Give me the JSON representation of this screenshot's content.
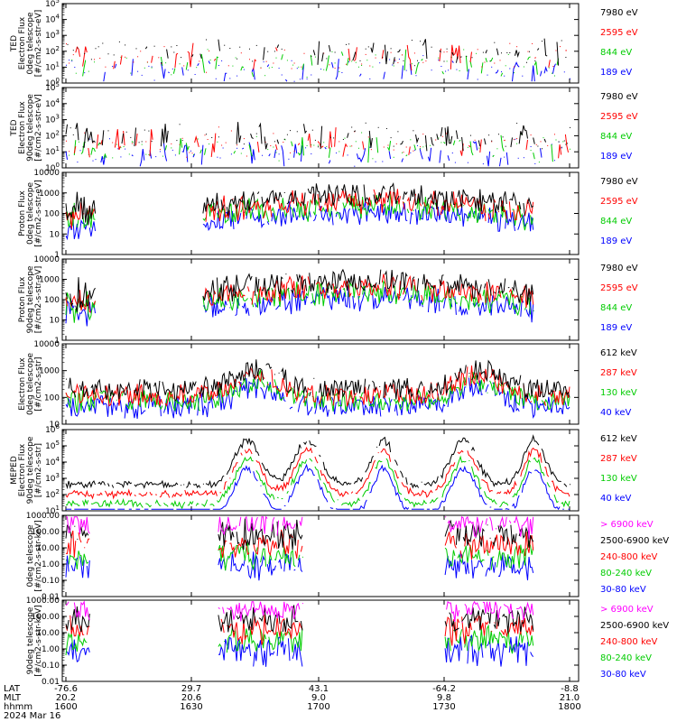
{
  "chart_data": [
    {
      "type": "line",
      "ylabel": [
        "TED",
        "Electron Flux",
        "0deg telescope",
        "[#/cm2-s-str-eV]"
      ],
      "yscale": "log",
      "ytick_labels": [
        "10^0",
        "10^1",
        "10^2",
        "10^3",
        "10^4",
        "10^5"
      ],
      "ylim": [
        1,
        100000
      ],
      "series": [
        {
          "name": "7980 eV",
          "color": "#000000"
        },
        {
          "name": "2595 eV",
          "color": "#ff0000"
        },
        {
          "name": "844 eV",
          "color": "#00cc00"
        },
        {
          "name": "189 eV",
          "color": "#0000ff"
        }
      ]
    },
    {
      "type": "line",
      "ylabel": [
        "TED",
        "Electron Flux",
        "90deg telescope",
        "[#/cm2-s-str-eV]"
      ],
      "yscale": "log",
      "ytick_labels": [
        "10^0",
        "10^1",
        "10^2",
        "10^3",
        "10^4",
        "10^5"
      ],
      "ylim": [
        1,
        100000
      ],
      "series": [
        {
          "name": "7980 eV",
          "color": "#000000"
        },
        {
          "name": "2595 eV",
          "color": "#ff0000"
        },
        {
          "name": "844 eV",
          "color": "#00cc00"
        },
        {
          "name": "189 eV",
          "color": "#0000ff"
        }
      ]
    },
    {
      "type": "line",
      "ylabel": [
        "Proton Flux",
        "0deg telescope",
        "[#/cm2-s-str-eV]"
      ],
      "yscale": "log",
      "ytick_labels": [
        "1",
        "10",
        "100",
        "1000",
        "10000"
      ],
      "ylim": [
        1,
        10000
      ],
      "series": [
        {
          "name": "7980 eV",
          "color": "#000000"
        },
        {
          "name": "2595 eV",
          "color": "#ff0000"
        },
        {
          "name": "844 eV",
          "color": "#00cc00"
        },
        {
          "name": "189 eV",
          "color": "#0000ff"
        }
      ]
    },
    {
      "type": "line",
      "ylabel": [
        "Proton Flux",
        "90deg telescope",
        "[#/cm2-s-str-eV]"
      ],
      "yscale": "log",
      "ytick_labels": [
        "1",
        "10",
        "100",
        "1000",
        "10000"
      ],
      "ylim": [
        1,
        10000
      ],
      "series": [
        {
          "name": "7980 eV",
          "color": "#000000"
        },
        {
          "name": "2595 eV",
          "color": "#ff0000"
        },
        {
          "name": "844 eV",
          "color": "#00cc00"
        },
        {
          "name": "189 eV",
          "color": "#0000ff"
        }
      ]
    },
    {
      "type": "line",
      "ylabel": [
        "Electron Flux",
        "0deg telescope",
        "[#/cm2-s-str]"
      ],
      "yscale": "log",
      "ytick_labels": [
        "10",
        "100",
        "1000",
        "10000"
      ],
      "ylim": [
        10,
        10000
      ],
      "series": [
        {
          "name": "612 keV",
          "color": "#000000"
        },
        {
          "name": "287 keV",
          "color": "#ff0000"
        },
        {
          "name": "130 keV",
          "color": "#00cc00"
        },
        {
          "name": "40 keV",
          "color": "#0000ff"
        }
      ]
    },
    {
      "type": "line",
      "ylabel": [
        "MEPED",
        "Electron Flux",
        "90deg telescope",
        "[#/cm2-s-str]"
      ],
      "yscale": "log",
      "ytick_labels": [
        "10^1",
        "10^2",
        "10^3",
        "10^4",
        "10^5",
        "10^6"
      ],
      "ylim": [
        10,
        1000000
      ],
      "series": [
        {
          "name": "612 keV",
          "color": "#000000"
        },
        {
          "name": "287 keV",
          "color": "#ff0000"
        },
        {
          "name": "130 keV",
          "color": "#00cc00"
        },
        {
          "name": "40 keV",
          "color": "#0000ff"
        }
      ]
    },
    {
      "type": "line",
      "ylabel": [
        "0deg telescope",
        "[#/cm2-s-str-keV]"
      ],
      "yscale": "log",
      "ytick_labels": [
        "0.01",
        "0.10",
        "1.00",
        "10.00",
        "100.00",
        "1000.00"
      ],
      "ylim": [
        0.01,
        1000
      ],
      "series": [
        {
          "name": "> 6900 keV",
          "color": "#ff00ff"
        },
        {
          "name": "2500-6900 keV",
          "color": "#000000"
        },
        {
          "name": "240-800 keV",
          "color": "#ff0000"
        },
        {
          "name": "80-240 keV",
          "color": "#00cc00"
        },
        {
          "name": "30-80 keV",
          "color": "#0000ff"
        }
      ]
    },
    {
      "type": "line",
      "ylabel": [
        "90deg telescope",
        "[#/cm2-s-str-keV]"
      ],
      "yscale": "log",
      "ytick_labels": [
        "0.01",
        "0.10",
        "1.00",
        "10.00",
        "100.00",
        "1000.00"
      ],
      "ylim": [
        0.01,
        1000
      ],
      "series": [
        {
          "name": "> 6900 keV",
          "color": "#ff00ff"
        },
        {
          "name": "2500-6900 keV",
          "color": "#000000"
        },
        {
          "name": "240-800 keV",
          "color": "#ff0000"
        },
        {
          "name": "80-240 keV",
          "color": "#00cc00"
        },
        {
          "name": "30-80 keV",
          "color": "#0000ff"
        }
      ]
    }
  ],
  "xaxis": {
    "row_labels": [
      "LAT",
      "MLT",
      "hhmm",
      "2024 Mar 16"
    ],
    "ticks": [
      {
        "lat": "-76.6",
        "mlt": "20.2",
        "hhmm": "1600"
      },
      {
        "lat": "29.7",
        "mlt": "20.6",
        "hhmm": "1630"
      },
      {
        "lat": "43.1",
        "mlt": "9.0",
        "hhmm": "1700"
      },
      {
        "lat": "-64.2",
        "mlt": "9.8",
        "hhmm": "1730"
      },
      {
        "lat": "-8.8",
        "mlt": "21.0",
        "hhmm": "1800"
      }
    ]
  }
}
